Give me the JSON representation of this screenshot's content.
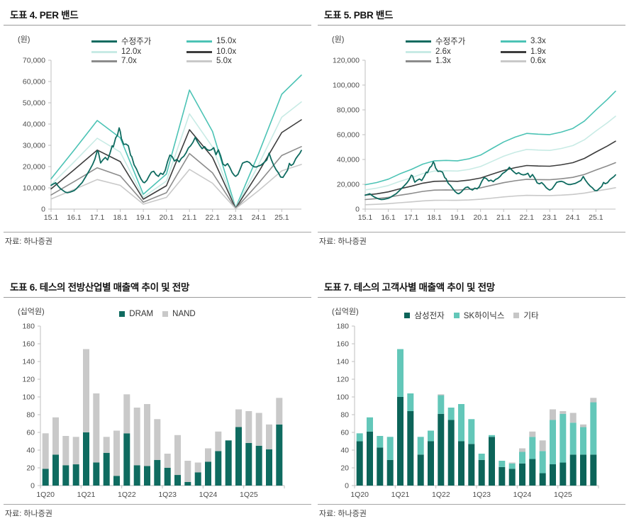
{
  "colors": {
    "price": "#0f6b60",
    "band_teal": "#4cc3b5",
    "band_mint": "#c8ebe5",
    "band_dark": "#3d3d3d",
    "band_gray": "#8c8c8c",
    "band_light": "#c9c9c9",
    "dram": "#0f6b60",
    "nand": "#c9c9c9",
    "samsung": "#0c6459",
    "skhynix": "#63c7b9",
    "etc": "#c6c6c6",
    "axis": "#bfbfbf",
    "tick_text": "#4d4d4d"
  },
  "price_series": {
    "label": "수정주가",
    "x": [
      0.0,
      0.1,
      0.2,
      0.3,
      0.4,
      0.5,
      0.6,
      0.7,
      0.8,
      0.9,
      1.0,
      1.1,
      1.2,
      1.35,
      1.5,
      1.65,
      1.8,
      1.9,
      2.0,
      2.05,
      2.15,
      2.25,
      2.35,
      2.45,
      2.55,
      2.65,
      2.7,
      2.8,
      2.88,
      2.95,
      3.0,
      3.05,
      3.15,
      3.25,
      3.35,
      3.45,
      3.5,
      3.6,
      3.7,
      3.8,
      3.9,
      4.0,
      4.05,
      4.15,
      4.25,
      4.35,
      4.45,
      4.55,
      4.65,
      4.75,
      4.85,
      4.95,
      5.05,
      5.15,
      5.25,
      5.35,
      5.45,
      5.55,
      5.65,
      5.75,
      5.85,
      5.95,
      6.05,
      6.15,
      6.25,
      6.35,
      6.45,
      6.55,
      6.65,
      6.75,
      6.85,
      6.95,
      7.05,
      7.15,
      7.25,
      7.35,
      7.45,
      7.55,
      7.65,
      7.75,
      7.85,
      7.95,
      8.0,
      8.1,
      8.2,
      8.3,
      8.4,
      8.5,
      8.6,
      8.7,
      8.8,
      8.9,
      9.0,
      9.1,
      9.2,
      9.35,
      9.45,
      9.55,
      9.65,
      9.75,
      9.85,
      9.95,
      10.05,
      10.15,
      10.25,
      10.33,
      10.4,
      10.5,
      10.6,
      10.7,
      10.78,
      10.85
    ],
    "y": [
      11200,
      11800,
      12400,
      10900,
      9700,
      8900,
      8100,
      7700,
      7900,
      8300,
      8700,
      9600,
      10800,
      12500,
      15200,
      18000,
      21000,
      23500,
      27400,
      26800,
      21700,
      23200,
      24300,
      23100,
      26200,
      29800,
      29300,
      33500,
      34800,
      38200,
      36500,
      33200,
      30400,
      30600,
      29800,
      25300,
      24600,
      20800,
      18900,
      16400,
      14100,
      12600,
      12400,
      13500,
      15600,
      17400,
      17800,
      16200,
      15400,
      16900,
      16300,
      18200,
      22300,
      25400,
      24700,
      22600,
      23400,
      22200,
      23900,
      24800,
      26400,
      28700,
      29800,
      31400,
      33700,
      31600,
      29900,
      28400,
      29400,
      28100,
      27600,
      27900,
      28900,
      25600,
      27900,
      25100,
      21200,
      20400,
      21400,
      19600,
      17200,
      15800,
      15400,
      16300,
      18900,
      21600,
      22100,
      22400,
      21900,
      20600,
      19900,
      19800,
      20300,
      20700,
      21600,
      23100,
      26300,
      23200,
      20600,
      18600,
      17100,
      15100,
      14900,
      16600,
      18300,
      21500,
      20500,
      21200,
      23600,
      25100,
      26200,
      27600
    ]
  },
  "chart_data": [
    {
      "id": "per-band",
      "type": "line",
      "title": "도표 4. PER 밴드",
      "unit_label": "(원)",
      "source": "자료: 하나증권",
      "ylim": [
        0,
        70000
      ],
      "yticks": [
        "0",
        "10,000",
        "20,000",
        "30,000",
        "40,000",
        "50,000",
        "60,000",
        "70,000"
      ],
      "xticks": [
        "15.1",
        "16.1",
        "17.1",
        "18.1",
        "19.1",
        "20.1",
        "21.1",
        "22.1",
        "23.1",
        "24.1",
        "25.1"
      ],
      "x_start": 0,
      "x_end": 10.85,
      "price_label": "수정주가",
      "band_base": {
        "x": [
          0,
          1,
          2,
          3,
          4,
          5,
          6,
          7,
          8,
          9,
          10,
          10.85
        ],
        "v": [
          950,
          1850,
          2777,
          2233,
          467,
          1100,
          3733,
          2433,
          40,
          1750,
          3600,
          4200
        ]
      },
      "bands": [
        {
          "label": "15.0x",
          "multiple": 15,
          "color": "band_teal"
        },
        {
          "label": "12.0x",
          "multiple": 12,
          "color": "band_mint"
        },
        {
          "label": "10.0x",
          "multiple": 10,
          "color": "band_dark"
        },
        {
          "label": "7.0x",
          "multiple": 7,
          "color": "band_gray"
        },
        {
          "label": "5.0x",
          "multiple": 5,
          "color": "band_light"
        }
      ]
    },
    {
      "id": "pbr-band",
      "type": "line",
      "title": "도표 5. PBR 밴드",
      "unit_label": "(원)",
      "source": "자료: 하나증권",
      "ylim": [
        0,
        120000
      ],
      "yticks": [
        "0",
        "20,000",
        "40,000",
        "60,000",
        "80,000",
        "100,000",
        "120,000"
      ],
      "xticks": [
        "15.1",
        "16.1",
        "17.1",
        "18.1",
        "19.1",
        "20.1",
        "21.1",
        "22.1",
        "23.1",
        "24.1",
        "25.1"
      ],
      "x_start": 0,
      "x_end": 10.85,
      "price_label": "수정주가",
      "band_base": {
        "x": [
          0,
          0.5,
          1,
          1.5,
          2,
          2.5,
          3,
          3.5,
          4,
          4.5,
          5,
          5.5,
          6,
          6.5,
          7,
          7.5,
          8,
          8.5,
          9,
          9.5,
          10,
          10.5,
          10.85
        ],
        "v": [
          5950,
          6500,
          7300,
          8600,
          9700,
          11000,
          11800,
          11900,
          11800,
          12300,
          13200,
          14800,
          16400,
          17600,
          18500,
          18300,
          18200,
          18800,
          19700,
          21500,
          24200,
          26800,
          28800
        ]
      },
      "bands": [
        {
          "label": "3.3x",
          "multiple": 3.3,
          "color": "band_teal"
        },
        {
          "label": "2.6x",
          "multiple": 2.6,
          "color": "band_mint"
        },
        {
          "label": "1.9x",
          "multiple": 1.9,
          "color": "band_dark"
        },
        {
          "label": "1.3x",
          "multiple": 1.3,
          "color": "band_gray"
        },
        {
          "label": "0.6x",
          "multiple": 0.6,
          "color": "band_light"
        }
      ]
    },
    {
      "id": "industry-sales",
      "type": "stacked-bar",
      "title": "도표 6. 테스의 전방산업별 매출액 추이 및 전망",
      "unit_label": "(십억원)",
      "source": "자료: 하나증권",
      "ylim": [
        0,
        180
      ],
      "yticks": [
        "0",
        "20",
        "40",
        "60",
        "80",
        "100",
        "120",
        "140",
        "160",
        "180"
      ],
      "xticks": [
        "1Q20",
        "1Q21",
        "1Q22",
        "1Q23",
        "1Q24",
        "1Q25"
      ],
      "bars_per_tick": 4,
      "n_bars": 24,
      "series": [
        {
          "name": "DRAM",
          "color": "dram",
          "values": [
            19,
            35,
            23,
            24,
            60,
            26,
            37,
            11,
            59,
            23,
            22,
            29,
            20,
            12,
            4,
            15,
            27,
            39,
            51,
            66,
            48,
            45,
            41,
            69
          ]
        },
        {
          "name": "NAND",
          "color": "nand",
          "values": [
            40,
            42,
            33,
            31,
            94,
            78,
            18,
            51,
            44,
            65,
            70,
            46,
            16,
            45,
            24,
            11,
            15,
            22,
            0,
            20,
            36,
            37,
            28,
            30
          ]
        }
      ]
    },
    {
      "id": "customer-sales",
      "type": "stacked-bar",
      "title": "도표 7. 테스의 고객사별 매출액 추이 및 전망",
      "unit_label": "(십억원)",
      "source": "자료: 하나증권",
      "ylim": [
        0,
        180
      ],
      "yticks": [
        "0",
        "20",
        "40",
        "60",
        "80",
        "100",
        "120",
        "140",
        "160",
        "180"
      ],
      "xticks": [
        "1Q20",
        "1Q21",
        "1Q22",
        "1Q23",
        "1Q24",
        "1Q25"
      ],
      "bars_per_tick": 4,
      "n_bars": 24,
      "series": [
        {
          "name": "삼성전자",
          "color": "samsung",
          "values": [
            50,
            61,
            43,
            29,
            100,
            84,
            35,
            50,
            81,
            74,
            50,
            47,
            29,
            55,
            21,
            19,
            25,
            30,
            14,
            24,
            26,
            35,
            35,
            35
          ]
        },
        {
          "name": "SK하이닉스",
          "color": "skhynix",
          "values": [
            9,
            16,
            13,
            26,
            54,
            20,
            20,
            12,
            21,
            14,
            42,
            28,
            7,
            2,
            7,
            6,
            13,
            25,
            25,
            50,
            55,
            36,
            31,
            59
          ]
        },
        {
          "name": "기타",
          "color": "etc",
          "values": [
            0,
            0,
            0,
            0,
            0,
            0,
            0,
            0,
            1,
            0,
            0,
            0,
            0,
            0,
            0,
            1,
            4,
            6,
            12,
            12,
            3,
            11,
            3,
            5
          ]
        }
      ]
    }
  ]
}
